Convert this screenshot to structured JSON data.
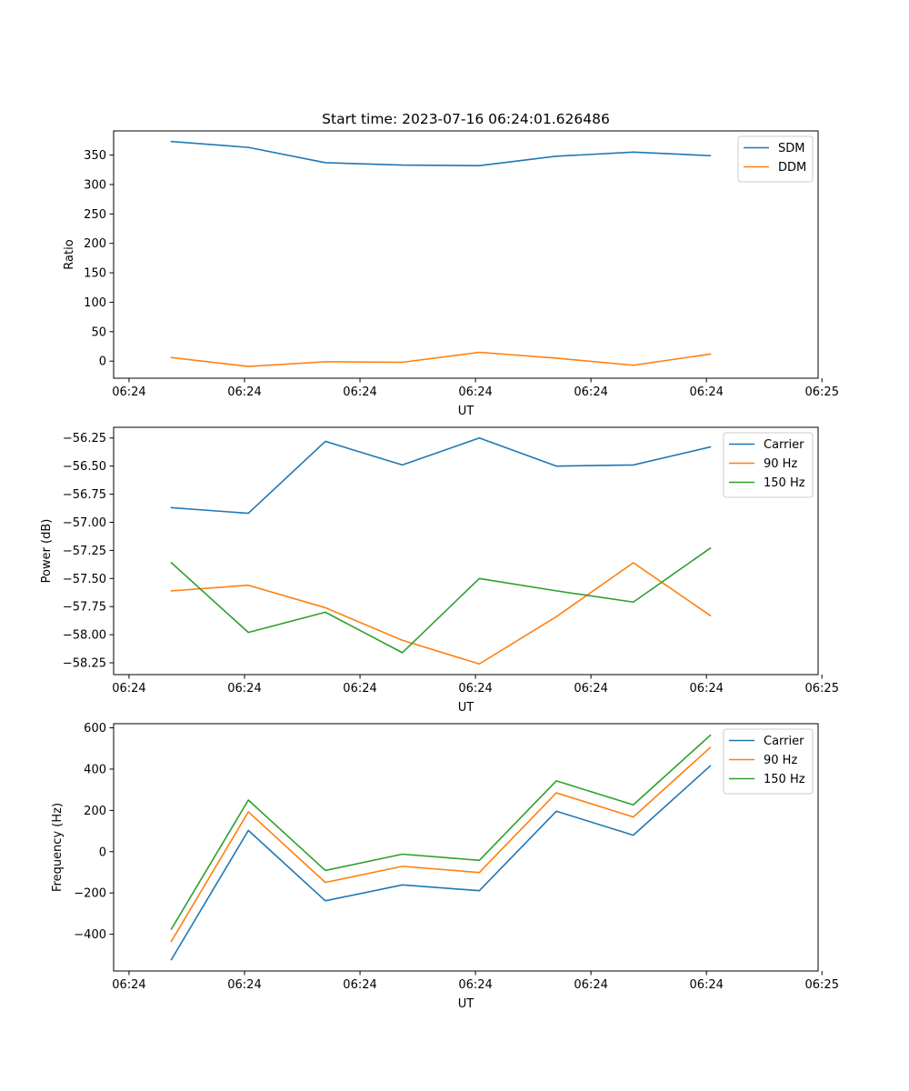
{
  "chart_data": [
    {
      "type": "line",
      "title": "Start time: 2023-07-16 06:24:01.626486",
      "xlabel": "UT",
      "ylabel": "Ratio",
      "x": [
        1,
        2,
        3,
        4,
        5,
        6,
        7,
        8
      ],
      "xlim": [
        0.25,
        9.4
      ],
      "x_ticks": [
        0.45,
        1.95,
        3.45,
        4.95,
        6.45,
        7.95,
        9.45
      ],
      "x_tick_labels": [
        "06:24",
        "06:24",
        "06:24",
        "06:24",
        "06:24",
        "06:24",
        "06:25"
      ],
      "ylim": [
        -29,
        391
      ],
      "y_ticks": [
        0,
        50,
        100,
        150,
        200,
        250,
        300,
        350
      ],
      "y_tick_labels": [
        "0",
        "50",
        "100",
        "150",
        "200",
        "250",
        "300",
        "350"
      ],
      "legend_position": "top-right",
      "series": [
        {
          "name": "SDM",
          "color": "#1f77b4",
          "values": [
            373,
            363,
            337,
            333,
            332,
            348,
            355,
            349
          ]
        },
        {
          "name": "DDM",
          "color": "#ff7f0e",
          "values": [
            6,
            -9,
            -1,
            -2,
            15,
            5,
            -7,
            12
          ]
        }
      ]
    },
    {
      "type": "line",
      "title": "",
      "xlabel": "UT",
      "ylabel": "Power (dB)",
      "x": [
        1,
        2,
        3,
        4,
        5,
        6,
        7,
        8
      ],
      "xlim": [
        0.25,
        9.4
      ],
      "x_ticks": [
        0.45,
        1.95,
        3.45,
        4.95,
        6.45,
        7.95,
        9.45
      ],
      "x_tick_labels": [
        "06:24",
        "06:24",
        "06:24",
        "06:24",
        "06:24",
        "06:24",
        "06:25"
      ],
      "ylim": [
        -58.355,
        -56.155
      ],
      "y_ticks": [
        -56.25,
        -56.5,
        -56.75,
        -57.0,
        -57.25,
        -57.5,
        -57.75,
        -58.0,
        -58.25
      ],
      "y_tick_labels": [
        "−56.25",
        "−56.50",
        "−56.75",
        "−57.00",
        "−57.25",
        "−57.50",
        "−57.75",
        "−58.00",
        "−58.25"
      ],
      "legend_position": "top-right",
      "series": [
        {
          "name": "Carrier",
          "color": "#1f77b4",
          "values": [
            -56.87,
            -56.92,
            -56.28,
            -56.49,
            -56.25,
            -56.5,
            -56.49,
            -56.33
          ]
        },
        {
          "name": "90 Hz",
          "color": "#ff7f0e",
          "values": [
            -57.61,
            -57.56,
            -57.76,
            -58.05,
            -58.26,
            -57.84,
            -57.36,
            -57.83
          ]
        },
        {
          "name": "150 Hz",
          "color": "#2ca02c",
          "values": [
            -57.36,
            -57.98,
            -57.8,
            -58.16,
            -57.5,
            -57.61,
            -57.71,
            -57.23
          ]
        }
      ]
    },
    {
      "type": "line",
      "title": "",
      "xlabel": "UT",
      "ylabel": "Frequency (Hz)",
      "x": [
        1,
        2,
        3,
        4,
        5,
        6,
        7,
        8
      ],
      "xlim": [
        0.25,
        9.4
      ],
      "x_ticks": [
        0.45,
        1.95,
        3.45,
        4.95,
        6.45,
        7.95,
        9.45
      ],
      "x_tick_labels": [
        "06:24",
        "06:24",
        "06:24",
        "06:24",
        "06:24",
        "06:24",
        "06:25"
      ],
      "ylim": [
        -578,
        620
      ],
      "y_ticks": [
        -400,
        -200,
        0,
        200,
        400,
        600
      ],
      "y_tick_labels": [
        "−400",
        "−200",
        "0",
        "200",
        "400",
        "600"
      ],
      "legend_position": "top-right",
      "series": [
        {
          "name": "Carrier",
          "color": "#1f77b4",
          "values": [
            -523,
            103,
            -238,
            -161,
            -189,
            196,
            80,
            416
          ]
        },
        {
          "name": "90 Hz",
          "color": "#ff7f0e",
          "values": [
            -434,
            193,
            -149,
            -71,
            -101,
            285,
            168,
            505
          ]
        },
        {
          "name": "150 Hz",
          "color": "#2ca02c",
          "values": [
            -375,
            250,
            -91,
            -12,
            -42,
            343,
            227,
            564
          ]
        }
      ]
    }
  ]
}
